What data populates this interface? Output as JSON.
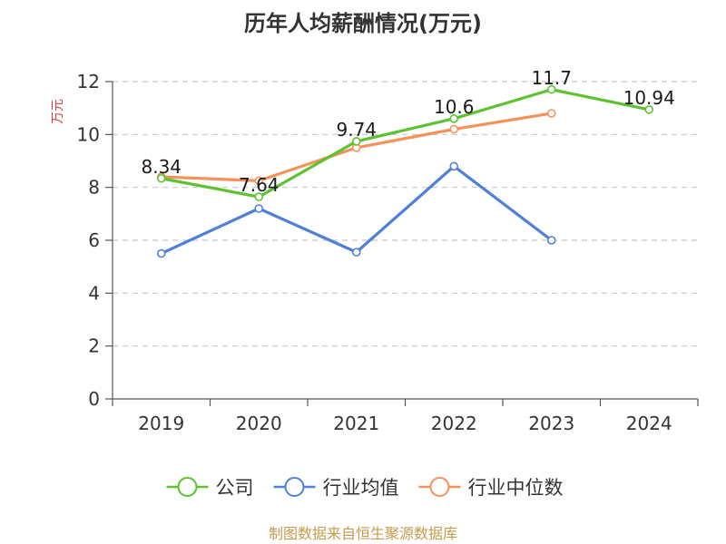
{
  "chart_data": {
    "type": "line",
    "title": "历年人均薪酬情况(万元)",
    "ylabel": "万元",
    "xlabel": "",
    "categories": [
      "2019",
      "2020",
      "2021",
      "2022",
      "2023",
      "2024"
    ],
    "ylim": [
      0,
      12
    ],
    "yticks": [
      0,
      2,
      4,
      6,
      8,
      10,
      12
    ],
    "grid": true,
    "legend_position": "bottom",
    "series": [
      {
        "name": "公司",
        "color": "#5cc22f",
        "values": [
          8.34,
          7.64,
          9.74,
          10.6,
          11.7,
          10.94
        ],
        "show_labels": true
      },
      {
        "name": "行业均值",
        "color": "#4f7fd8",
        "values": [
          5.5,
          7.2,
          5.55,
          8.8,
          6.0,
          null
        ],
        "show_labels": false
      },
      {
        "name": "行业中位数",
        "color": "#f5925a",
        "values": [
          8.4,
          8.25,
          9.5,
          10.2,
          10.8,
          null
        ],
        "show_labels": false
      }
    ],
    "source": "制图数据来自恒生聚源数据库",
    "source_color": "#c59a4c",
    "ylabel_color": "#e03c3c"
  }
}
